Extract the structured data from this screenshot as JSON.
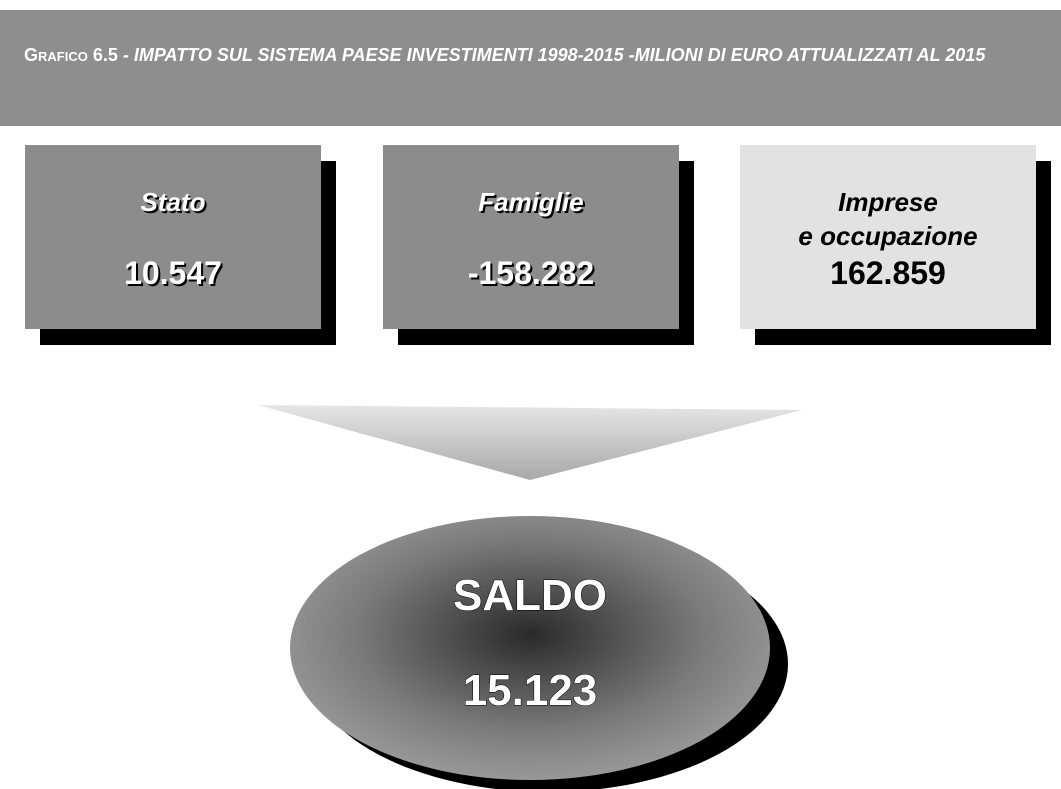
{
  "header": {
    "label": "Grafico 6.5",
    "title": "- IMPATTO SUL SISTEMA PAESE INVESTIMENTI 1998-2015 -MILIONI DI EURO ATTUALIZZATI AL 2015"
  },
  "boxes": [
    {
      "label_lines": [
        "Stato"
      ],
      "value": "10.547"
    },
    {
      "label_lines": [
        "Famiglie"
      ],
      "value": "-158.282"
    },
    {
      "label_lines": [
        "Imprese",
        "e occupazione"
      ],
      "value": "162.859"
    }
  ],
  "result": {
    "label": "SALDO",
    "value": "15.123"
  }
}
